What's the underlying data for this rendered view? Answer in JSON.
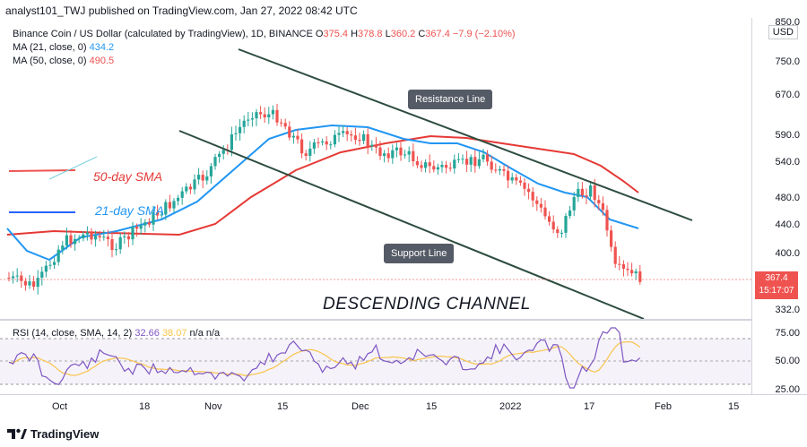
{
  "publisher_line": "analyst101_TWJ published on TradingView.com, Jan 27, 2022 08:42 UTC",
  "symbol": {
    "title": "Binance Coin / US Dollar (calculated by TradingView), 1D, BINANCE",
    "o_label": "O",
    "o": "375.4",
    "h_label": "H",
    "h": "378.8",
    "l_label": "L",
    "l": "360.2",
    "c_label": "C",
    "c": "367.4",
    "change": "−7.9 (−2.10%)"
  },
  "ma21": {
    "label": "MA (21, close, 0)",
    "value": "434.2"
  },
  "ma50": {
    "label": "MA (50, close, 0)",
    "value": "490.5"
  },
  "currency": "USD",
  "price_axis": [
    "850.0",
    "750.0",
    "670.0",
    "590.0",
    "540.0",
    "480.0",
    "440.0",
    "400.0",
    "332.0"
  ],
  "last_price": {
    "price": "367.4",
    "countdown": "15:17:07"
  },
  "rsi": {
    "label": "RSI (14, close, SMA, 14, 2)",
    "v1": "32.66",
    "v2": "38.07",
    "na": "n/a n/a",
    "axis": [
      "75.00",
      "50.00",
      "25.00"
    ]
  },
  "time_axis": [
    "Oct",
    "18",
    "Nov",
    "15",
    "Dec",
    "15",
    "2022",
    "17",
    "Feb",
    "15"
  ],
  "annotations": {
    "sma50": "50-day SMA",
    "sma21": "21-day SMA",
    "resistance": "Resistance Line",
    "support": "Support Line",
    "channel": "DESCENDING CHANNEL"
  },
  "footer_brand": "TradingView",
  "colors": {
    "up": "#26a69a",
    "down": "#ef5350",
    "ma21": "#2196f3",
    "ma50": "#e53935",
    "rsi": "#7e57c2",
    "rsi_ma": "#f9c44a"
  }
}
